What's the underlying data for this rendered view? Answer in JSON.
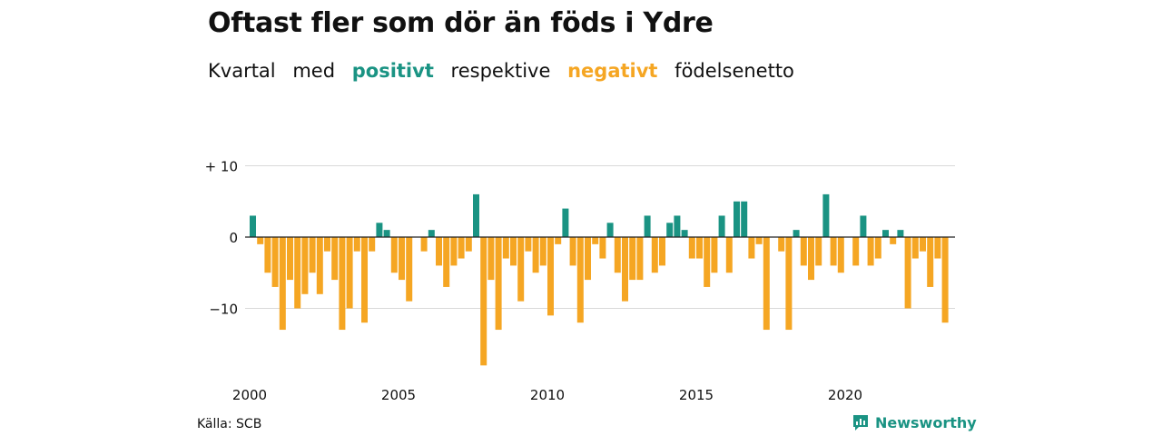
{
  "title": "Oftast fler som dör än föds i Ydre",
  "subtitle": {
    "w1": "Kvartal",
    "w2": "med",
    "positive": "positivt",
    "w3": "respektive",
    "negative": "negativt",
    "w4": "födelsenetto"
  },
  "source": "Källa: SCB",
  "brand": "Newsworthy",
  "colors": {
    "positive": "#1a9383",
    "negative": "#f5a623",
    "grid": "#d9d9d9"
  },
  "chart_data": {
    "type": "bar",
    "x_start": "2000 Q1",
    "x_ticks": [
      "2000",
      "2005",
      "2010",
      "2015",
      "2020"
    ],
    "y_ticks": [
      {
        "value": 10,
        "label": "+ 10"
      },
      {
        "value": 0,
        "label": "0"
      },
      {
        "value": -10,
        "label": "−10"
      }
    ],
    "ylim": [
      -18,
      10
    ],
    "grid": true,
    "values": [
      3,
      -1,
      -5,
      -7,
      -13,
      -6,
      -10,
      -8,
      -5,
      -8,
      -2,
      -6,
      -13,
      -10,
      -2,
      -12,
      -2,
      2,
      1,
      -5,
      -6,
      -9,
      0,
      -2,
      1,
      -4,
      -7,
      -4,
      -3,
      -2,
      6,
      -18,
      -6,
      -13,
      -3,
      -4,
      -9,
      -2,
      -5,
      -4,
      -11,
      -1,
      4,
      -4,
      -12,
      -6,
      -1,
      -3,
      2,
      -5,
      -9,
      -6,
      -6,
      3,
      -5,
      -4,
      2,
      3,
      1,
      -3,
      -3,
      -7,
      -5,
      3,
      -5,
      5,
      5,
      -3,
      -1,
      -13,
      0,
      -2,
      -13,
      1,
      -4,
      -6,
      -4,
      6,
      -4,
      -5,
      0,
      -4,
      3,
      -4,
      -3,
      1,
      -1,
      1,
      -10,
      -3,
      -2,
      -7,
      -3,
      -12
    ]
  }
}
